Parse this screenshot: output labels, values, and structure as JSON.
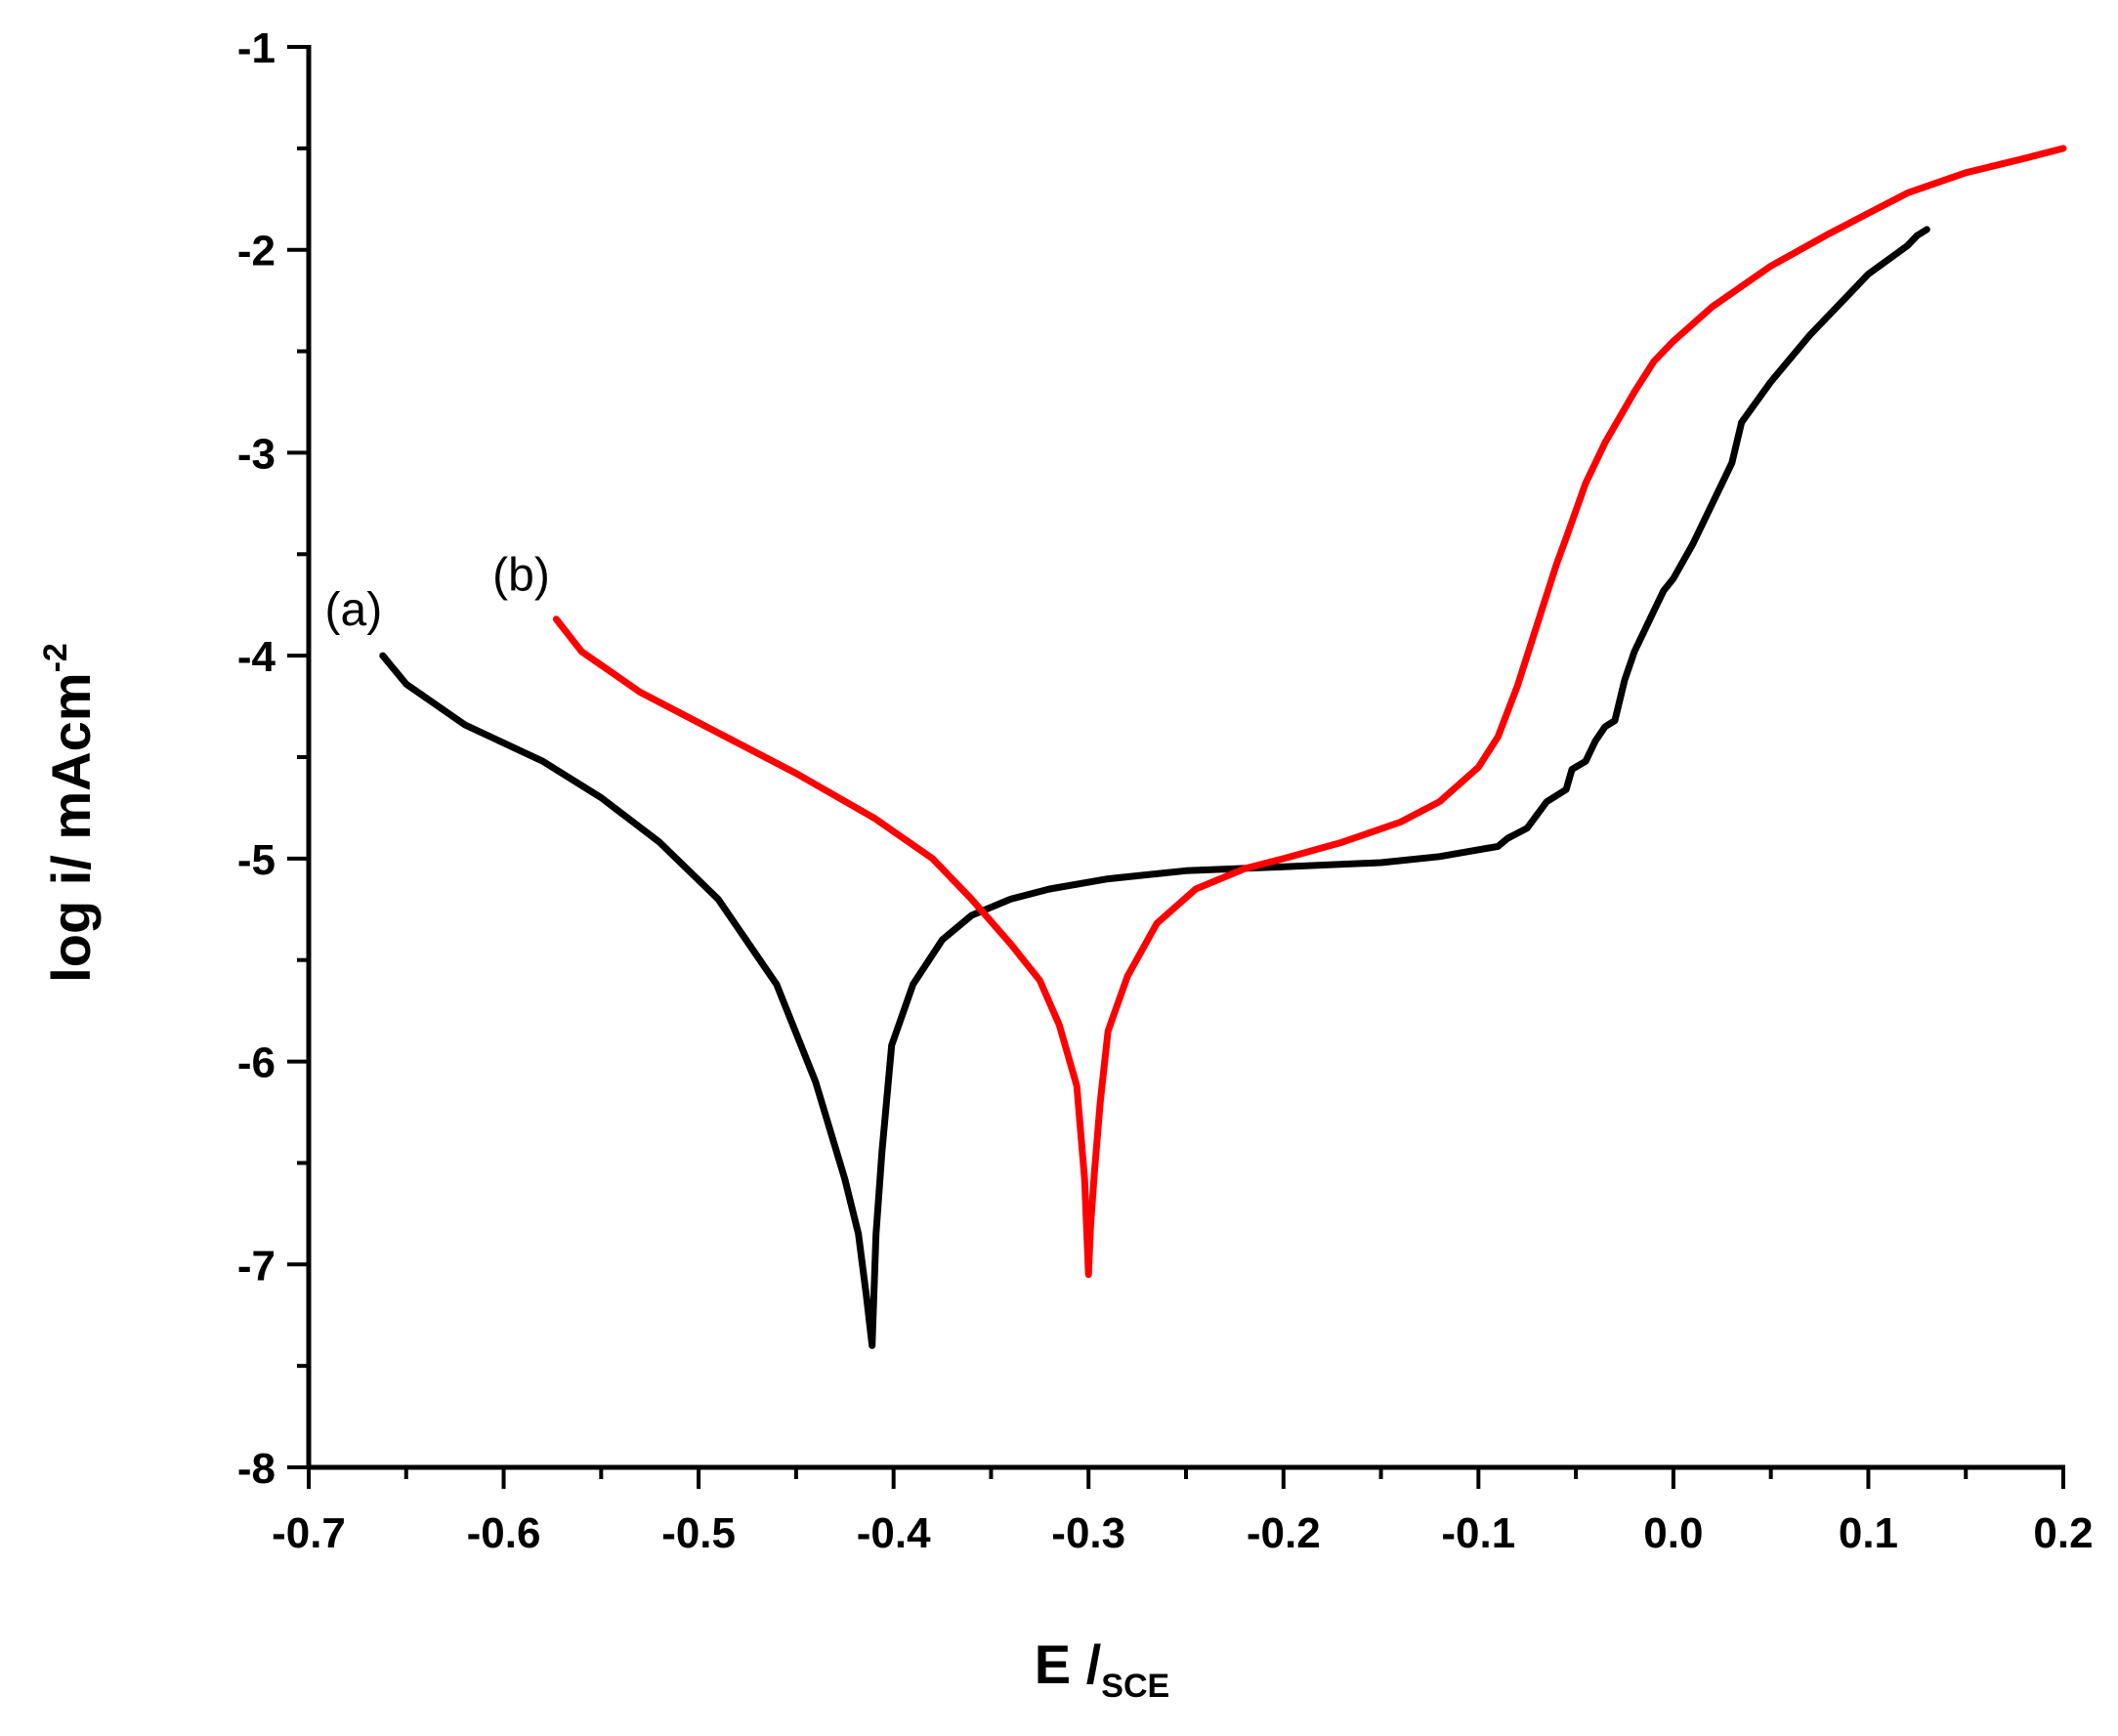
{
  "chart_data": {
    "type": "line",
    "title": "",
    "xlabel": {
      "main": "E /",
      "sub": "SCE"
    },
    "ylabel": {
      "main": "log i/ mAcm",
      "sup": "-2"
    },
    "xlim": [
      -0.7,
      0.2
    ],
    "ylim": [
      -8,
      -1
    ],
    "x_ticks": [
      -0.7,
      -0.6,
      -0.5,
      -0.4,
      -0.3,
      -0.2,
      -0.1,
      0.0,
      0.1,
      0.2
    ],
    "x_tick_labels": [
      "-0.7",
      "-0.6",
      "-0.5",
      "-0.4",
      "-0.3",
      "-0.2",
      "-0.1",
      "0.0",
      "0.1",
      "0.2"
    ],
    "y_ticks": [
      -8,
      -7,
      -6,
      -5,
      -4,
      -3,
      -2,
      -1
    ],
    "y_tick_labels": [
      "-8",
      "-7",
      "-6",
      "-5",
      "-4",
      "-3",
      "-2",
      "-1"
    ],
    "grid": false,
    "series": [
      {
        "name": "(a)",
        "color": "#000000",
        "x": [
          -0.662,
          -0.65,
          -0.62,
          -0.58,
          -0.55,
          -0.52,
          -0.49,
          -0.46,
          -0.44,
          -0.425,
          -0.418,
          -0.414,
          -0.411,
          -0.409,
          -0.406,
          -0.401,
          -0.39,
          -0.375,
          -0.36,
          -0.34,
          -0.32,
          -0.29,
          -0.25,
          -0.2,
          -0.15,
          -0.12,
          -0.09,
          -0.085,
          -0.075,
          -0.065,
          -0.055,
          -0.052,
          -0.045,
          -0.04,
          -0.035,
          -0.03,
          -0.025,
          -0.02,
          -0.01,
          -0.005,
          0.0,
          0.01,
          0.02,
          0.03,
          0.035,
          0.05,
          0.07,
          0.09,
          0.1,
          0.11,
          0.12,
          0.125,
          0.13
        ],
        "y": [
          -4.0,
          -4.14,
          -4.34,
          -4.52,
          -4.7,
          -4.92,
          -5.2,
          -5.62,
          -6.1,
          -6.58,
          -6.85,
          -7.15,
          -7.4,
          -6.85,
          -6.45,
          -5.92,
          -5.62,
          -5.4,
          -5.28,
          -5.2,
          -5.15,
          -5.1,
          -5.06,
          -5.04,
          -5.02,
          -4.99,
          -4.94,
          -4.9,
          -4.85,
          -4.72,
          -4.66,
          -4.56,
          -4.52,
          -4.42,
          -4.35,
          -4.32,
          -4.12,
          -3.98,
          -3.78,
          -3.68,
          -3.62,
          -3.45,
          -3.25,
          -3.05,
          -2.85,
          -2.65,
          -2.42,
          -2.22,
          -2.12,
          -2.05,
          -1.98,
          -1.93,
          -1.9
        ]
      },
      {
        "name": "(b)",
        "color": "#ff0000",
        "x": [
          -0.573,
          -0.56,
          -0.53,
          -0.49,
          -0.45,
          -0.41,
          -0.38,
          -0.36,
          -0.34,
          -0.325,
          -0.315,
          -0.306,
          -0.302,
          -0.3,
          -0.299,
          -0.297,
          -0.294,
          -0.29,
          -0.28,
          -0.265,
          -0.245,
          -0.22,
          -0.2,
          -0.17,
          -0.14,
          -0.12,
          -0.1,
          -0.09,
          -0.08,
          -0.07,
          -0.06,
          -0.055,
          -0.045,
          -0.035,
          -0.02,
          -0.01,
          0.0,
          0.02,
          0.05,
          0.08,
          0.1,
          0.12,
          0.15,
          0.18,
          0.2
        ],
        "y": [
          -3.82,
          -3.98,
          -4.18,
          -4.38,
          -4.58,
          -4.8,
          -5.0,
          -5.2,
          -5.42,
          -5.6,
          -5.82,
          -6.12,
          -6.58,
          -7.05,
          -6.82,
          -6.55,
          -6.2,
          -5.85,
          -5.58,
          -5.32,
          -5.15,
          -5.05,
          -5.0,
          -4.92,
          -4.82,
          -4.72,
          -4.55,
          -4.4,
          -4.15,
          -3.85,
          -3.55,
          -3.42,
          -3.15,
          -2.95,
          -2.7,
          -2.55,
          -2.45,
          -2.28,
          -2.08,
          -1.92,
          -1.82,
          -1.72,
          -1.62,
          -1.55,
          -1.5
        ]
      }
    ],
    "annotations": [
      {
        "text": "(a)",
        "x": -0.677,
        "y": -3.85
      },
      {
        "text": "(b)",
        "x": -0.591,
        "y": -3.68
      }
    ]
  }
}
